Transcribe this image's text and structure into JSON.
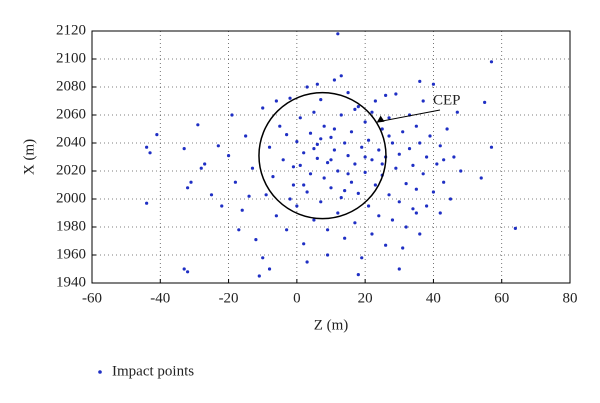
{
  "chart_data": {
    "type": "scatter",
    "xlabel": "Z (m)",
    "ylabel": "X (m)",
    "xlim": [
      -60,
      80
    ],
    "xticks": [
      -60,
      -40,
      -20,
      0,
      20,
      40,
      60,
      80
    ],
    "ylim": [
      1940,
      2120
    ],
    "yticks": [
      1940,
      1960,
      1980,
      2000,
      2020,
      2040,
      2060,
      2080,
      2100,
      2120
    ],
    "grid": true,
    "legend": "bottom-left",
    "annotation": "CEP",
    "cep_circle": {
      "center": [
        7.5,
        2031
      ],
      "radius": [
        18.6,
        45
      ]
    },
    "x": [
      -44,
      -43,
      -44,
      -41,
      -33,
      -33,
      -32,
      -31,
      -32,
      -29,
      -22,
      12,
      57,
      64,
      55,
      57,
      54,
      -27,
      -25,
      -20,
      -19,
      -18,
      -16,
      -15,
      -13,
      -12,
      -11,
      -10,
      -10,
      -9,
      -8,
      -7,
      -6,
      -5,
      -4,
      -3,
      -2,
      -1,
      0,
      0,
      1,
      1,
      2,
      2,
      3,
      3,
      4,
      4,
      5,
      5,
      6,
      6,
      7,
      7,
      8,
      8,
      9,
      9,
      10,
      10,
      11,
      11,
      12,
      12,
      13,
      13,
      14,
      14,
      15,
      15,
      16,
      16,
      17,
      17,
      18,
      18,
      19,
      19,
      20,
      20,
      21,
      21,
      22,
      22,
      23,
      23,
      24,
      24,
      25,
      25,
      26,
      26,
      27,
      27,
      28,
      28,
      29,
      29,
      30,
      30,
      31,
      31,
      32,
      32,
      33,
      33,
      34,
      34,
      35,
      35,
      36,
      36,
      37,
      37,
      38,
      38,
      39,
      40,
      40,
      41,
      42,
      42,
      43,
      44,
      45,
      46,
      47,
      48,
      -14,
      -6,
      -3,
      2,
      6,
      9,
      13,
      18,
      22,
      26,
      30,
      -23,
      -17,
      -1,
      5,
      10,
      15,
      20,
      25,
      -8,
      3,
      14,
      11,
      7,
      -2,
      17,
      27,
      35,
      43,
      -28,
      36
    ],
    "series": [
      {
        "name": "Impact points",
        "color": "#1f2fc4",
        "values": [
          2037,
          2033,
          1997,
          2046,
          2036,
          1950,
          1948,
          2012,
          2008,
          2053,
          1995,
          2118,
          2098,
          1979,
          2069,
          2037,
          2015,
          2025,
          2003,
          2031,
          2060,
          2012,
          1992,
          2045,
          2022,
          1971,
          1945,
          1958,
          2065,
          2003,
          2037,
          2016,
          1988,
          2052,
          2028,
          1978,
          2072,
          2010,
          2041,
          1995,
          2058,
          2024,
          1968,
          2033,
          2005,
          2080,
          2047,
          2018,
          1985,
          2062,
          2029,
          2039,
          1998,
          2071,
          2015,
          2052,
          1960,
          2026,
          2044,
          2008,
          2085,
          2035,
          1990,
          2020,
          2060,
          2001,
          2040,
          1972,
          2031,
          2076,
          2012,
          2048,
          1983,
          2025,
          2066,
          2004,
          2037,
          1958,
          2019,
          2055,
          1995,
          2042,
          2028,
          1975,
          2070,
          2010,
          2035,
          1988,
          2050,
          2017,
          1967,
          2030,
          2003,
          2058,
          2040,
          1985,
          2022,
          2075,
          1998,
          2032,
          1965,
          2048,
          2011,
          1980,
          2036,
          2060,
          1993,
          2024,
          2052,
          2007,
          1975,
          2040,
          2018,
          2070,
          1995,
          2030,
          2045,
          2005,
          2082,
          2025,
          1990,
          2038,
          2012,
          2050,
          2000,
          2030,
          2062,
          2020,
          2002,
          2070,
          2046,
          2010,
          2082,
          1978,
          2088,
          1946,
          2062,
          2074,
          1950,
          2038,
          1978,
          2023,
          2036,
          2028,
          2018,
          2030,
          2025,
          1950,
          1955,
          2006,
          2050,
          2043,
          2000,
          2064,
          2045,
          1990,
          2028,
          2022,
          2084
        ]
      }
    ]
  }
}
